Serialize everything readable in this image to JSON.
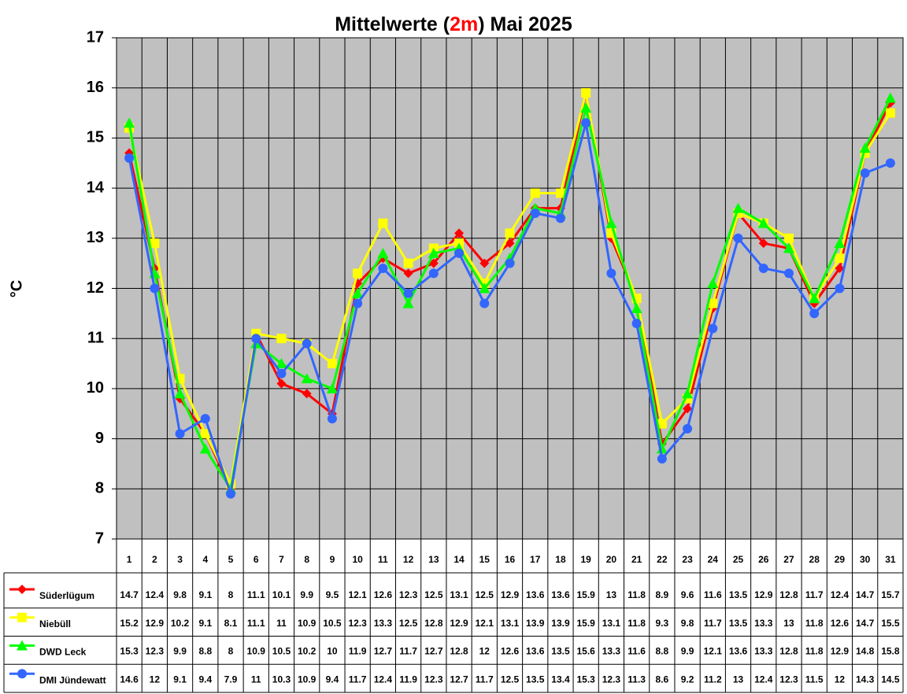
{
  "chart_data": {
    "type": "line",
    "title_parts": [
      "Mittelwerte (",
      "2m",
      ") Mai 2025"
    ],
    "title_highlight_index": 1,
    "title_highlight_color": "#ff0000",
    "y_label": "°C",
    "categories": [
      "1",
      "2",
      "3",
      "4",
      "5",
      "6",
      "7",
      "8",
      "9",
      "10",
      "11",
      "12",
      "13",
      "14",
      "15",
      "16",
      "17",
      "18",
      "19",
      "20",
      "21",
      "22",
      "23",
      "24",
      "25",
      "26",
      "27",
      "28",
      "29",
      "30",
      "31"
    ],
    "ylim": [
      7,
      17
    ],
    "yticks": [
      7,
      8,
      9,
      10,
      11,
      12,
      13,
      14,
      15,
      16,
      17
    ],
    "grid": true,
    "background": "#c0c0c0",
    "series": [
      {
        "name": "Süderlügum",
        "color": "#ff0000",
        "marker": "diamond",
        "values": [
          14.7,
          12.4,
          9.8,
          9.1,
          8,
          11.1,
          10.1,
          9.9,
          9.5,
          12.1,
          12.6,
          12.3,
          12.5,
          13.1,
          12.5,
          12.9,
          13.6,
          13.6,
          15.9,
          13,
          11.8,
          8.9,
          9.6,
          11.6,
          13.5,
          12.9,
          12.8,
          11.7,
          12.4,
          14.7,
          15.7
        ]
      },
      {
        "name": "Niebüll",
        "color": "#ffff00",
        "marker": "square",
        "values": [
          15.2,
          12.9,
          10.2,
          9.1,
          8.1,
          11.1,
          11,
          10.9,
          10.5,
          12.3,
          13.3,
          12.5,
          12.8,
          12.9,
          12.1,
          13.1,
          13.9,
          13.9,
          15.9,
          13.1,
          11.8,
          9.3,
          9.8,
          11.7,
          13.5,
          13.3,
          13,
          11.8,
          12.6,
          14.7,
          15.5
        ]
      },
      {
        "name": "DWD Leck",
        "color": "#00ff00",
        "marker": "triangle",
        "values": [
          15.3,
          12.3,
          9.9,
          8.8,
          8,
          10.9,
          10.5,
          10.2,
          10,
          11.9,
          12.7,
          11.7,
          12.7,
          12.8,
          12,
          12.6,
          13.6,
          13.5,
          15.6,
          13.3,
          11.6,
          8.8,
          9.9,
          12.1,
          13.6,
          13.3,
          12.8,
          11.8,
          12.9,
          14.8,
          15.8
        ]
      },
      {
        "name": "DMI Jündewatt",
        "color": "#3366ff",
        "marker": "circle",
        "values": [
          14.6,
          12,
          9.1,
          9.4,
          7.9,
          11,
          10.3,
          10.9,
          9.4,
          11.7,
          12.4,
          11.9,
          12.3,
          12.7,
          11.7,
          12.5,
          13.5,
          13.4,
          15.3,
          12.3,
          11.3,
          8.6,
          9.2,
          11.2,
          13,
          12.4,
          12.3,
          11.5,
          12,
          14.3,
          14.5
        ]
      }
    ]
  }
}
